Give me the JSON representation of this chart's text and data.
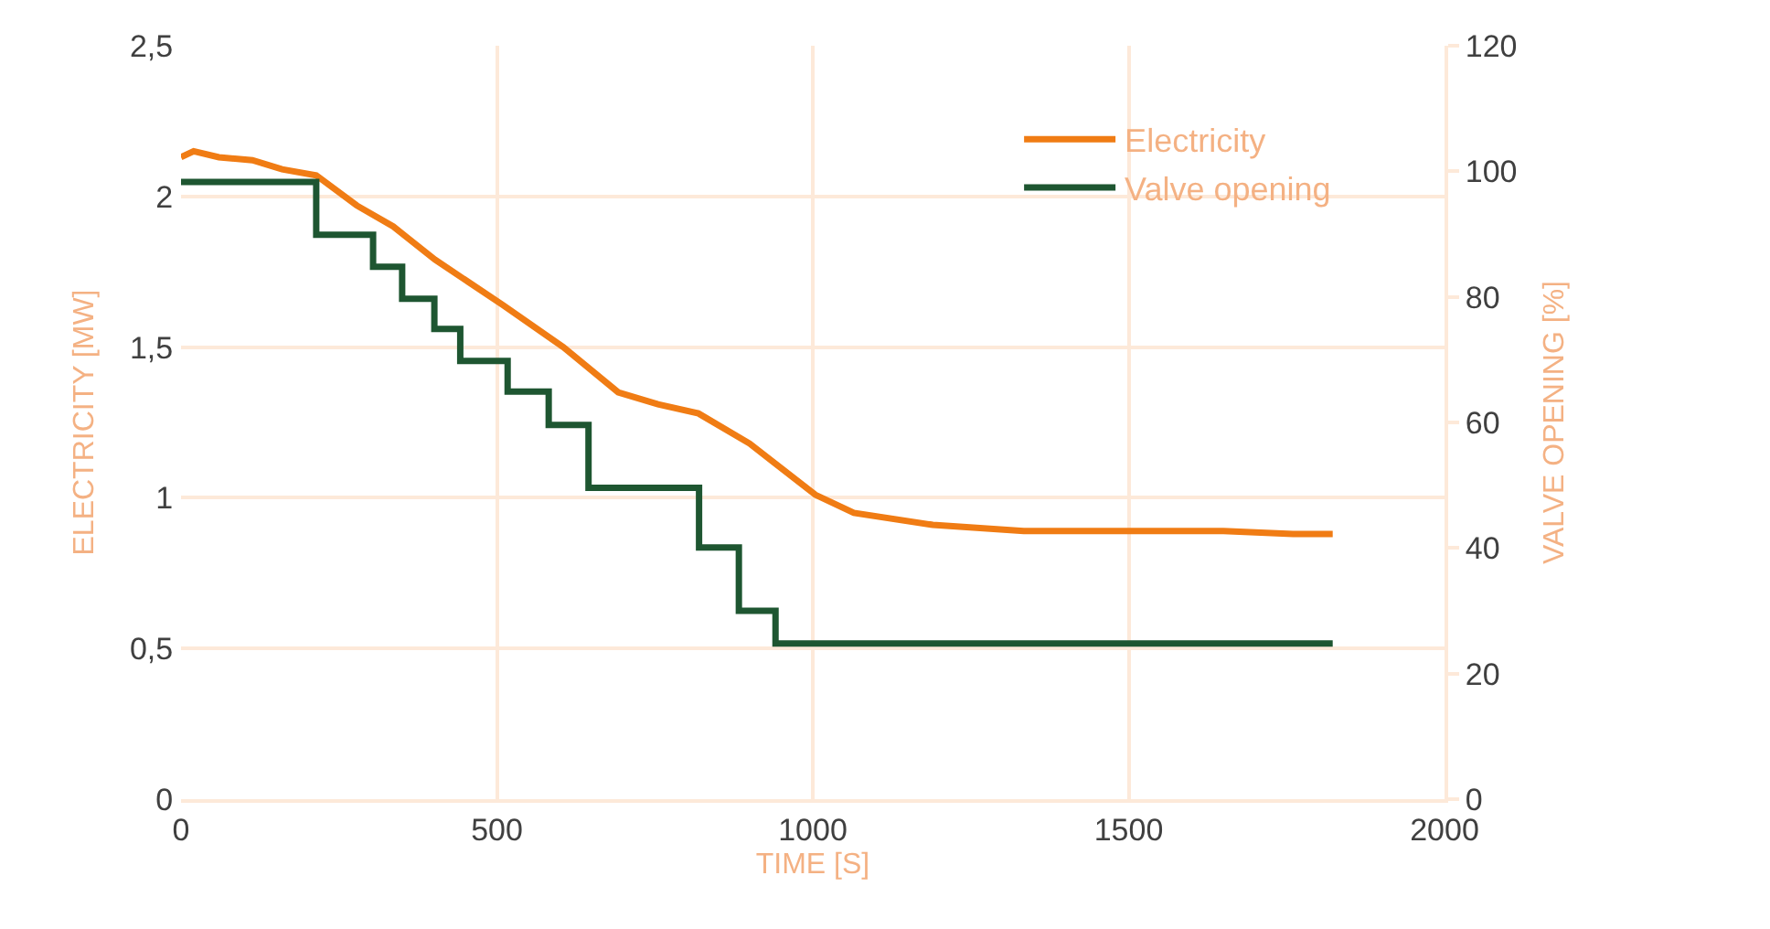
{
  "chart_data": {
    "type": "line",
    "xlabel": "TIME [S]",
    "ylabel": "ELECTRICITY [MW]",
    "y2label": "VALVE OPENING [%]",
    "series": [
      {
        "name": "Electricity",
        "color": "#f07c14",
        "x": [
          0,
          20,
          60,
          113,
          160,
          214,
          278,
          336,
          402,
          509,
          605,
          692,
          755,
          819,
          900,
          1004,
          1065,
          1190,
          1334,
          1500,
          1650,
          1760,
          1823
        ],
        "values": [
          2.13,
          2.15,
          2.13,
          2.12,
          2.09,
          2.07,
          1.97,
          1.9,
          1.79,
          1.64,
          1.5,
          1.35,
          1.31,
          1.28,
          1.18,
          1.01,
          0.95,
          0.91,
          0.89,
          0.89,
          0.89,
          0.88,
          0.88
        ]
      },
      {
        "name": "Valve opening",
        "type": "step",
        "axis": "y2",
        "color": "#1e5631",
        "x": [
          0,
          214,
          304,
          350,
          401,
          442,
          517,
          582,
          645,
          820,
          883,
          941,
          1823
        ],
        "values": [
          98.3,
          89.9,
          84.8,
          79.7,
          74.9,
          69.8,
          64.9,
          59.6,
          49.6,
          40.1,
          30.0,
          24.8,
          24.8
        ]
      }
    ],
    "xlim": [
      0,
      2000
    ],
    "xticks": [
      0,
      500,
      1000,
      1500,
      2000
    ],
    "ylim": [
      0,
      2.5
    ],
    "yticks": [
      0,
      {
        "value": 0.5,
        "label": "0,5"
      },
      1,
      {
        "value": 1.5,
        "label": "1,5"
      },
      2,
      {
        "value": 2.5,
        "label": "2,5"
      }
    ],
    "y2lim": [
      0,
      120
    ],
    "y2ticks": [
      0,
      20,
      40,
      60,
      80,
      100,
      120
    ],
    "grid": true,
    "legend": "top right",
    "marker": "none",
    "line_style": "solid"
  }
}
